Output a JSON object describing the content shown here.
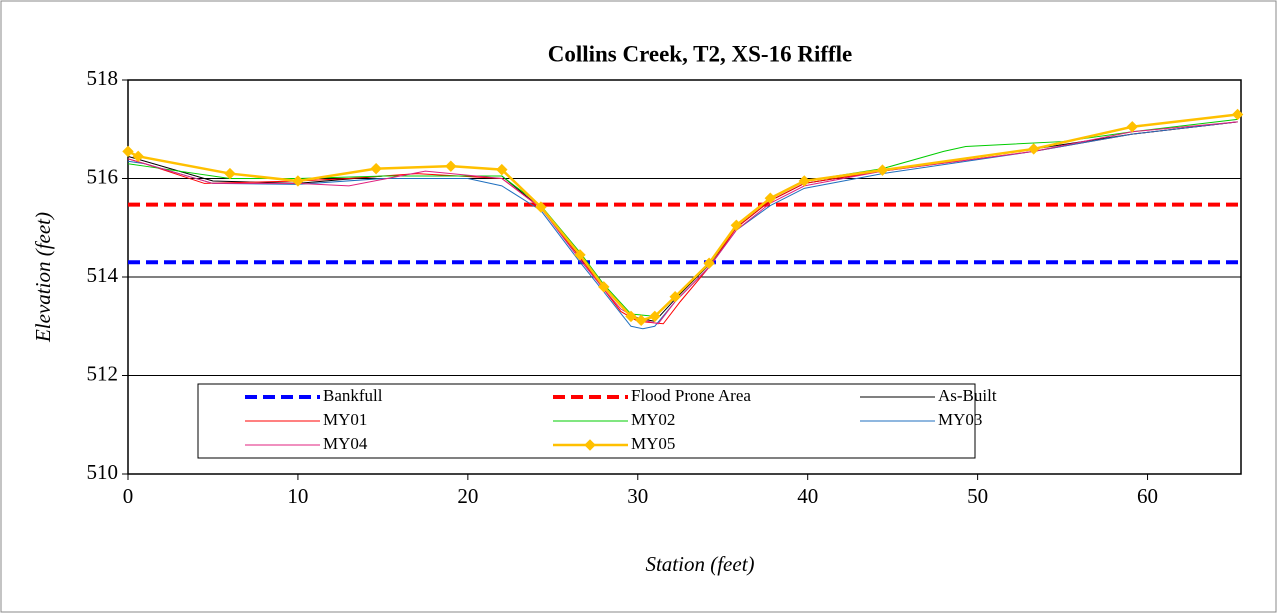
{
  "chart_data": {
    "type": "line",
    "title": "Collins Creek, T2, XS-16 Riffle",
    "x_label": "Station (feet)",
    "y_label": "Elevation (feet)",
    "xlim": [
      0,
      65.5
    ],
    "ylim": [
      510,
      518
    ],
    "xticks": [
      0,
      10,
      20,
      30,
      40,
      50,
      60
    ],
    "yticks": [
      510,
      512,
      514,
      516,
      518
    ],
    "grid": true,
    "series": [
      {
        "name": "Bankfull",
        "color": "#0000ff",
        "dashed": true,
        "width": 4,
        "marker": false,
        "x": [
          0,
          65.5
        ],
        "values": [
          514.3,
          514.3
        ]
      },
      {
        "name": "Flood Prone Area",
        "color": "#ff0000",
        "dashed": true,
        "width": 4,
        "marker": false,
        "x": [
          0,
          65.5
        ],
        "values": [
          515.47,
          515.47
        ]
      },
      {
        "name": "As-Built",
        "color": "#000000",
        "dashed": false,
        "width": 1,
        "marker": false,
        "x": [
          0,
          1,
          5,
          10,
          15,
          20,
          22,
          24.3,
          26.6,
          28,
          29.6,
          31,
          32.2,
          34.2,
          35.8,
          37.8,
          39.8,
          44.4,
          53.3,
          59.1,
          65.3
        ],
        "values": [
          516.45,
          516.35,
          515.95,
          515.9,
          516.05,
          516.05,
          516.05,
          515.4,
          514.4,
          513.8,
          513.2,
          513.1,
          513.55,
          514.25,
          515.0,
          515.55,
          515.9,
          516.15,
          516.6,
          516.9,
          517.15
        ]
      },
      {
        "name": "MY01",
        "color": "#ff0000",
        "dashed": false,
        "width": 1,
        "marker": false,
        "x": [
          0,
          1,
          4.5,
          10,
          13,
          17,
          22,
          24.3,
          26.6,
          28,
          29,
          30,
          31.5,
          32.5,
          34.2,
          35.8,
          37.8,
          39.8,
          44.4,
          53.3,
          59.1,
          65.3
        ],
        "values": [
          516.4,
          516.3,
          515.9,
          515.95,
          516.0,
          516.1,
          516.0,
          515.4,
          514.4,
          513.75,
          513.3,
          513.1,
          513.05,
          513.5,
          514.2,
          515.0,
          515.55,
          515.9,
          516.15,
          516.55,
          516.9,
          517.15
        ]
      },
      {
        "name": "MY02",
        "color": "#00cc00",
        "dashed": false,
        "width": 1,
        "marker": false,
        "x": [
          0,
          1,
          6,
          10,
          15,
          20,
          22,
          24.3,
          26.6,
          28,
          29.6,
          31,
          32.2,
          34.2,
          35.8,
          37.8,
          39.8,
          44.4,
          48,
          49.3,
          55,
          59.1,
          65.3
        ],
        "values": [
          516.3,
          516.25,
          516.0,
          516.0,
          516.05,
          516.05,
          516.05,
          515.45,
          514.5,
          513.85,
          513.25,
          513.2,
          513.6,
          514.3,
          515.05,
          515.6,
          515.95,
          516.2,
          516.55,
          516.65,
          516.75,
          516.95,
          517.2
        ]
      },
      {
        "name": "MY03",
        "color": "#1f6fbf",
        "dashed": false,
        "width": 1,
        "marker": false,
        "x": [
          0,
          1,
          5,
          10,
          15,
          20,
          22,
          24.3,
          26.6,
          28,
          29.6,
          30.3,
          31,
          32.2,
          34.2,
          35.8,
          37.8,
          39.8,
          44.4,
          53.3,
          59.1,
          65.3
        ],
        "values": [
          516.35,
          516.3,
          515.9,
          515.88,
          516.0,
          516.0,
          515.85,
          515.35,
          514.3,
          513.7,
          513.0,
          512.95,
          513.0,
          513.5,
          514.2,
          514.95,
          515.45,
          515.8,
          516.1,
          516.55,
          516.9,
          517.15
        ]
      },
      {
        "name": "MY04",
        "color": "#e0207f",
        "dashed": false,
        "width": 1,
        "marker": false,
        "x": [
          0,
          1,
          5,
          10,
          13,
          17.5,
          22,
          24.3,
          26.6,
          28,
          29,
          30,
          31.2,
          32.2,
          34.2,
          35.8,
          37.8,
          39.8,
          44.4,
          53.3,
          59.1,
          65.3
        ],
        "values": [
          516.4,
          516.3,
          515.9,
          515.9,
          515.85,
          516.15,
          516.0,
          515.4,
          514.35,
          513.75,
          513.35,
          513.15,
          513.05,
          513.5,
          514.2,
          514.95,
          515.5,
          515.85,
          516.15,
          516.55,
          516.95,
          517.15
        ]
      },
      {
        "name": "MY05",
        "color": "#ffc000",
        "dashed": false,
        "width": 2.5,
        "marker": true,
        "x": [
          0,
          0.6,
          6,
          10,
          14.6,
          19,
          22,
          24.3,
          26.6,
          28,
          29.6,
          30.2,
          31,
          32.2,
          34.2,
          35.8,
          37.8,
          39.8,
          44.4,
          53.3,
          59.1,
          65.3
        ],
        "values": [
          516.55,
          516.45,
          516.1,
          515.95,
          516.2,
          516.25,
          516.18,
          515.42,
          514.45,
          513.8,
          513.2,
          513.12,
          513.2,
          513.6,
          514.28,
          515.05,
          515.6,
          515.95,
          516.17,
          516.6,
          517.05,
          517.3
        ]
      }
    ]
  }
}
